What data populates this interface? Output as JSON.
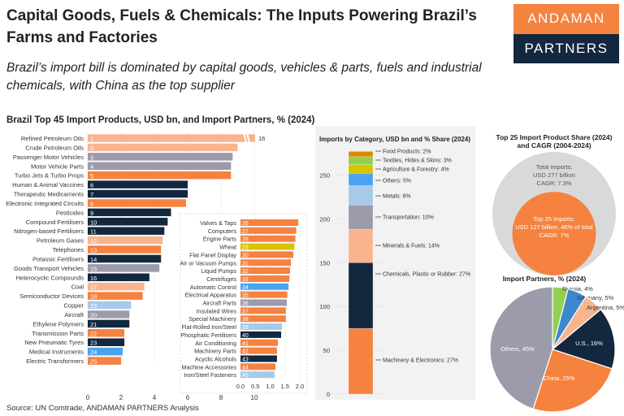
{
  "header": {
    "title": "Capital Goods, Fuels & Chemicals: The Inputs Powering Brazil’s Farms and Factories",
    "subtitle": "Brazil’s import bill is dominated by capital goods, vehicles & parts, fuels and industrial chemicals, with China as the top supplier",
    "logo_top": "ANDAMAN",
    "logo_bottom": "PARTNERS"
  },
  "source": "Source: UN Comtrade, ANDAMAN PARTNERS Analysis",
  "colors": {
    "machinery": "#F5823F",
    "chemicals": "#13283F",
    "minerals": "#F9B48E",
    "transport": "#9B9BAA",
    "metals": "#A7C9EA",
    "others": "#4BA3F0",
    "agri": "#D9C400",
    "textiles": "#92D050",
    "food": "#D88A00"
  },
  "chart_data": [
    {
      "type": "bar",
      "orientation": "horizontal",
      "title": "Brazil Top 45 Import Products, USD bn, and Import Partners, % (2024)",
      "xlim": [
        0,
        10
      ],
      "xticks": [
        "0",
        "2",
        "4",
        "6",
        "8",
        "10"
      ],
      "broken_bar_label": "16",
      "items": [
        {
          "rank": "1",
          "label": "Refined Petroleum Oils",
          "value": 16,
          "cat": "minerals"
        },
        {
          "rank": "2",
          "label": "Crude Petroleum Oils",
          "value": 9.0,
          "cat": "minerals"
        },
        {
          "rank": "3",
          "label": "Passenger Motor Vehicles",
          "value": 8.7,
          "cat": "transport"
        },
        {
          "rank": "4",
          "label": "Motor Vehicle Parts",
          "value": 8.6,
          "cat": "transport"
        },
        {
          "rank": "5",
          "label": "Turbo Jets & Turbo Props",
          "value": 8.6,
          "cat": "machinery"
        },
        {
          "rank": "6",
          "label": "Human & Animal Vaccines",
          "value": 6.0,
          "cat": "chemicals"
        },
        {
          "rank": "7",
          "label": "Therapeutic Medicaments",
          "value": 6.0,
          "cat": "chemicals"
        },
        {
          "rank": "8",
          "label": "Electronic Integrated Circuits",
          "value": 5.9,
          "cat": "machinery"
        },
        {
          "rank": "9",
          "label": "Pesticides",
          "value": 5.0,
          "cat": "chemicals"
        },
        {
          "rank": "10",
          "label": "Compound Fertilisers",
          "value": 4.8,
          "cat": "chemicals"
        },
        {
          "rank": "11",
          "label": "Nitrogen-based Fertilisers",
          "value": 4.6,
          "cat": "chemicals"
        },
        {
          "rank": "12",
          "label": "Petroleum Gases",
          "value": 4.5,
          "cat": "minerals"
        },
        {
          "rank": "13",
          "label": "Telephones",
          "value": 4.4,
          "cat": "machinery"
        },
        {
          "rank": "14",
          "label": "Potassic Fertilisers",
          "value": 4.4,
          "cat": "chemicals"
        },
        {
          "rank": "15",
          "label": "Goods Transport Vehicles",
          "value": 4.3,
          "cat": "transport"
        },
        {
          "rank": "16",
          "label": "Heterocyclic Compounds",
          "value": 3.7,
          "cat": "chemicals"
        },
        {
          "rank": "17",
          "label": "Coal",
          "value": 3.4,
          "cat": "minerals"
        },
        {
          "rank": "18",
          "label": "Semiconductor Devices",
          "value": 3.3,
          "cat": "machinery"
        },
        {
          "rank": "19",
          "label": "Copper",
          "value": 2.6,
          "cat": "metals"
        },
        {
          "rank": "20",
          "label": "Aircraft",
          "value": 2.5,
          "cat": "transport"
        },
        {
          "rank": "21",
          "label": "Ethylene Polymers",
          "value": 2.5,
          "cat": "chemicals"
        },
        {
          "rank": "22",
          "label": "Transmission Parts",
          "value": 2.2,
          "cat": "machinery"
        },
        {
          "rank": "23",
          "label": "New Pneumatic Tyres",
          "value": 2.2,
          "cat": "chemicals"
        },
        {
          "rank": "24",
          "label": "Medical Instruments",
          "value": 2.1,
          "cat": "others"
        },
        {
          "rank": "25",
          "label": "Electric Transformers",
          "value": 2.0,
          "cat": "machinery"
        }
      ]
    },
    {
      "type": "bar",
      "orientation": "horizontal",
      "xlim": [
        0,
        2.0
      ],
      "xticks": [
        "0.0",
        "0.5",
        "1.0",
        "1.5",
        "2.0"
      ],
      "items": [
        {
          "rank": "26",
          "label": "Valves & Taps",
          "value": 1.95,
          "cat": "machinery"
        },
        {
          "rank": "27",
          "label": "Computers",
          "value": 1.88,
          "cat": "machinery"
        },
        {
          "rank": "28",
          "label": "Engine Parts",
          "value": 1.85,
          "cat": "machinery"
        },
        {
          "rank": "29",
          "label": "Wheat",
          "value": 1.82,
          "cat": "agri"
        },
        {
          "rank": "30",
          "label": "Flat Panel Display",
          "value": 1.78,
          "cat": "machinery"
        },
        {
          "rank": "31",
          "label": "Air or Vacuum Pumps",
          "value": 1.7,
          "cat": "machinery"
        },
        {
          "rank": "32",
          "label": "Liquid Pumps",
          "value": 1.67,
          "cat": "machinery"
        },
        {
          "rank": "33",
          "label": "Centrifuges",
          "value": 1.65,
          "cat": "machinery"
        },
        {
          "rank": "34",
          "label": "Automatic Control",
          "value": 1.62,
          "cat": "others"
        },
        {
          "rank": "35",
          "label": "Electrical Apparatus",
          "value": 1.58,
          "cat": "machinery"
        },
        {
          "rank": "36",
          "label": "Aircraft Parts",
          "value": 1.56,
          "cat": "transport"
        },
        {
          "rank": "37",
          "label": "Insulated Wires",
          "value": 1.53,
          "cat": "machinery"
        },
        {
          "rank": "38",
          "label": "Special Machinery",
          "value": 1.53,
          "cat": "machinery"
        },
        {
          "rank": "39",
          "label": "Flat-Rolled Iron/Steel",
          "value": 1.4,
          "cat": "metals"
        },
        {
          "rank": "40",
          "label": "Phosphatic Fertilisers",
          "value": 1.37,
          "cat": "chemicals"
        },
        {
          "rank": "41",
          "label": "Air Conditioning",
          "value": 1.26,
          "cat": "machinery"
        },
        {
          "rank": "42",
          "label": "Machinery Parts",
          "value": 1.23,
          "cat": "machinery"
        },
        {
          "rank": "43",
          "label": "Acyclic Alcohols",
          "value": 1.23,
          "cat": "chemicals"
        },
        {
          "rank": "44",
          "label": "Machine Accessories",
          "value": 1.18,
          "cat": "machinery"
        },
        {
          "rank": "45",
          "label": "Iron/Steel Fasteners",
          "value": 1.15,
          "cat": "metals"
        }
      ]
    },
    {
      "type": "bar",
      "stacked": true,
      "title": "Imports by Category, USD bn and % Share (2024)",
      "ylim": [
        0,
        280
      ],
      "yticks": [
        "0",
        "50",
        "100",
        "150",
        "200",
        "250"
      ],
      "segments": [
        {
          "label": "Machinery & Electronics: 27%",
          "value": 75,
          "cat": "machinery"
        },
        {
          "label": "Chemicals, Plastic or Rubber: 27%",
          "value": 75,
          "cat": "chemicals"
        },
        {
          "label": "Minerals & Fuels: 14%",
          "value": 38,
          "cat": "minerals"
        },
        {
          "label": "Transportation: 10%",
          "value": 28,
          "cat": "transport"
        },
        {
          "label": "Metals: 8%",
          "value": 22,
          "cat": "metals"
        },
        {
          "label": "Others: 5%",
          "value": 14,
          "cat": "others"
        },
        {
          "label": "Agriculture & Forestry: 4%",
          "value": 10,
          "cat": "agri"
        },
        {
          "label": "Textiles, Hides & Skins: 3%",
          "value": 9,
          "cat": "textiles"
        },
        {
          "label": "Food Products: 2%",
          "value": 6,
          "cat": "food"
        }
      ]
    },
    {
      "type": "bubble",
      "title_lines": [
        "Top 25 Import Product Share (2024)",
        "and CAGR (2004-2024)"
      ],
      "outer_lines": [
        "Total imports:",
        "USD 277 billion",
        "CAGR: 7.3%"
      ],
      "inner_lines": [
        "Top 25 imports:",
        "USD 127 billion, 46% of total",
        "CAGR: 7%"
      ],
      "total": 277,
      "top25": 127
    },
    {
      "type": "pie",
      "title": "Import Partners, % (2024)",
      "slices": [
        {
          "label": "Russia, 4%",
          "value": 4,
          "color": "#92D050"
        },
        {
          "label": "Germany, 5%",
          "value": 5,
          "color": "#3F88D0"
        },
        {
          "label": "Argentina, 5%",
          "value": 5,
          "color": "#F9B48E"
        },
        {
          "label": "U.S., 16%",
          "value": 16,
          "color": "#13283F"
        },
        {
          "label": "China, 25%",
          "value": 25,
          "color": "#F5823F"
        },
        {
          "label": "Others, 45%",
          "value": 45,
          "color": "#9B9BAA"
        }
      ]
    }
  ]
}
